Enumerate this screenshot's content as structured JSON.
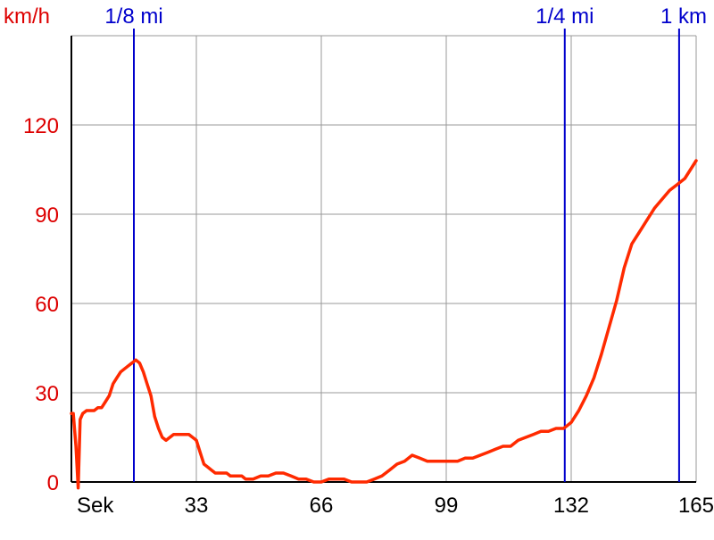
{
  "chart_data": {
    "type": "line",
    "title": "",
    "xlabel": "",
    "ylabel": "km/h",
    "x_axis_label": "Sek",
    "xlim": [
      0,
      165
    ],
    "ylim": [
      0,
      150
    ],
    "x_ticks": [
      33,
      66,
      99,
      132,
      165
    ],
    "y_ticks": [
      0,
      30,
      60,
      90,
      120
    ],
    "grid": true,
    "colors": {
      "series": "#ff2a00",
      "markers": "#0000cc",
      "y_labels": "#dd0000",
      "x_labels": "#000000",
      "grid": "#999999",
      "axes": "#000000"
    },
    "markers": [
      {
        "label": "1/8 mi",
        "x": 16.5
      },
      {
        "label": "1/4 mi",
        "x": 130.3
      },
      {
        "label": "1 km",
        "x": 160.5
      }
    ],
    "series": [
      {
        "x": [
          0,
          0.5,
          1.2,
          1.8,
          2.3,
          3,
          4,
          5,
          6,
          7,
          8,
          9,
          10,
          11,
          12,
          13,
          14,
          15,
          16,
          17,
          18,
          19,
          20,
          21,
          22,
          23,
          24,
          25,
          26,
          27,
          28,
          29,
          30,
          31,
          32,
          33,
          34,
          35,
          36,
          37,
          38,
          39,
          40,
          41,
          42,
          43,
          44,
          45,
          46,
          47,
          48,
          50,
          52,
          54,
          56,
          58,
          60,
          62,
          64,
          66,
          68,
          70,
          72,
          74,
          76,
          78,
          80,
          82,
          84,
          86,
          88,
          90,
          92,
          94,
          96,
          98,
          100,
          102,
          104,
          106,
          108,
          110,
          112,
          114,
          116,
          118,
          120,
          122,
          124,
          126,
          128,
          130,
          132,
          134,
          136,
          138,
          140,
          142,
          144,
          146,
          148,
          150,
          152,
          154,
          156,
          158,
          160,
          162,
          165
        ],
        "values": [
          23,
          23,
          12,
          -2,
          21,
          23,
          24,
          24,
          24,
          25,
          25,
          27,
          29,
          33,
          35,
          37,
          38,
          39,
          40,
          41,
          40,
          37,
          33,
          29,
          22,
          18,
          15,
          14,
          15,
          16,
          16,
          16,
          16,
          16,
          15,
          14,
          10,
          6,
          5,
          4,
          3,
          3,
          3,
          3,
          2,
          2,
          2,
          2,
          1,
          1,
          1,
          2,
          2,
          3,
          3,
          2,
          1,
          1,
          0,
          0,
          1,
          1,
          1,
          0,
          0,
          0,
          1,
          2,
          4,
          6,
          7,
          9,
          8,
          7,
          7,
          7,
          7,
          7,
          8,
          8,
          9,
          10,
          11,
          12,
          12,
          14,
          15,
          16,
          17,
          17,
          18,
          18,
          20,
          24,
          29,
          35,
          43,
          52,
          61,
          72,
          80,
          84,
          88,
          92,
          95,
          98,
          100,
          102,
          108
        ]
      }
    ]
  }
}
